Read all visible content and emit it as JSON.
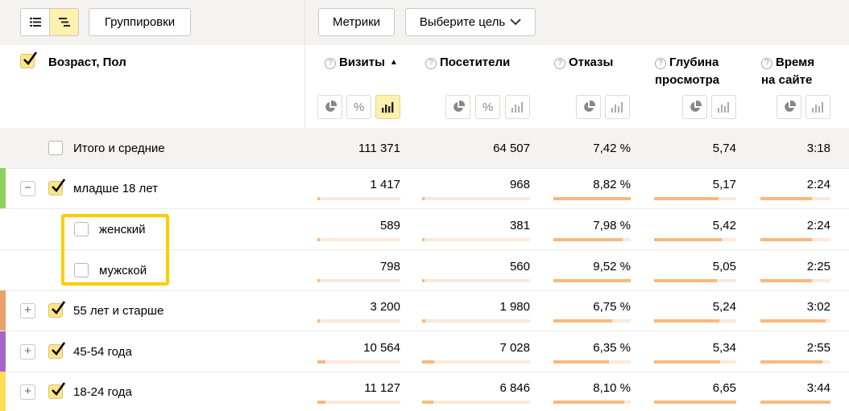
{
  "toolbar": {
    "groupings_label": "Группировки",
    "metrics_label": "Метрики",
    "goal_label": "Выберите цель"
  },
  "header": {
    "dimension_label": "Возраст, Пол",
    "columns": [
      {
        "line1": "Визиты",
        "line2": "",
        "sorted": "▲"
      },
      {
        "line1": "Посетители",
        "line2": ""
      },
      {
        "line1": "Отказы",
        "line2": ""
      },
      {
        "line1": "Глубина",
        "line2": "просмотра"
      },
      {
        "line1": "Время",
        "line2": "на сайте"
      }
    ]
  },
  "rows": [
    {
      "label": "Итого и средние",
      "values": [
        "111 371",
        "64 507",
        "7,42 %",
        "5,74",
        "3:18"
      ],
      "bars": null
    },
    {
      "label": "младше 18 лет",
      "color": "#8fd15f",
      "expander": "−",
      "checked": true,
      "values": [
        "1 417",
        "968",
        "8,82 %",
        "5,17",
        "2:24"
      ],
      "bars": [
        0.012,
        0.014,
        1.0,
        0.78,
        0.73
      ]
    },
    {
      "label": "женский",
      "checked": false,
      "values": [
        "589",
        "381",
        "7,98 %",
        "5,42",
        "2:24"
      ],
      "bars": [
        0.005,
        0.006,
        0.9,
        0.82,
        0.73
      ]
    },
    {
      "label": "мужской",
      "checked": false,
      "values": [
        "798",
        "560",
        "9,52 %",
        "5,05",
        "2:25"
      ],
      "bars": [
        0.007,
        0.009,
        1.0,
        0.76,
        0.74
      ]
    },
    {
      "label": "55 лет и старше",
      "color": "#e8a06e",
      "expander": "+",
      "checked": true,
      "values": [
        "3 200",
        "1 980",
        "6,75 %",
        "5,24",
        "3:02"
      ],
      "bars": [
        0.03,
        0.03,
        0.76,
        0.79,
        0.93
      ]
    },
    {
      "label": "45-54 года",
      "color": "#a666c8",
      "expander": "+",
      "checked": true,
      "values": [
        "10 564",
        "7 028",
        "6,35 %",
        "5,34",
        "2:55"
      ],
      "bars": [
        0.095,
        0.11,
        0.72,
        0.8,
        0.89
      ]
    },
    {
      "label": "18-24 года",
      "color": "#ffdd55",
      "expander": "+",
      "checked": true,
      "values": [
        "11 127",
        "6 846",
        "8,10 %",
        "6,65",
        "3:44"
      ],
      "bars": [
        0.1,
        0.106,
        0.92,
        1.0,
        1.0
      ]
    }
  ]
}
